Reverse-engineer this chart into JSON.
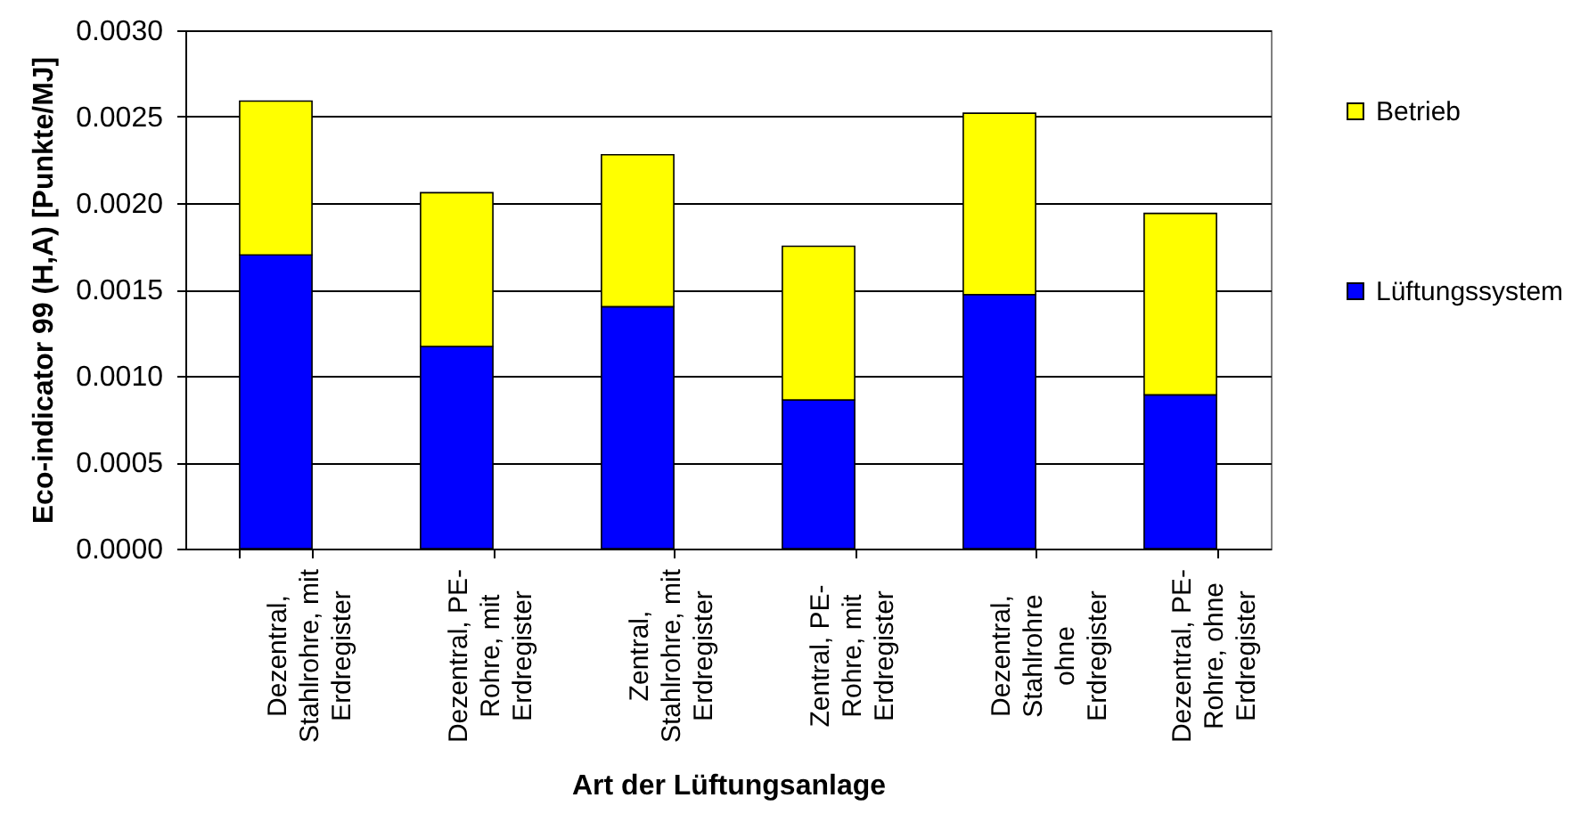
{
  "chart_data": {
    "type": "bar",
    "xlabel": "Art der Lüftungsanlage",
    "ylabel": "Eco-indicator 99 (H,A) [Punkte/MJ]",
    "categories": [
      "Dezentral, Stahlrohre, mit Erdregister",
      "Dezentral, PE-Rohre, mit Erdregister",
      "Zentral, Stahlrohre, mit Erdregister",
      "Zentral, PE-Rohre, mit Erdregister",
      "Dezentral, Stahlrohre ohne Erdregister",
      "Dezentral, PE-Rohre, ohne Erdregister"
    ],
    "series": [
      {
        "name": "Lüftungssystem",
        "color": "#0000ff",
        "values": [
          0.0017,
          0.00117,
          0.0014,
          0.00086,
          0.00147,
          0.00089
        ]
      },
      {
        "name": "Betrieb",
        "color": "#ffff00",
        "values": [
          0.00089,
          0.00089,
          0.00088,
          0.00089,
          0.00105,
          0.00105
        ]
      }
    ],
    "stacked": true,
    "ylim": [
      0,
      0.003
    ],
    "yticks": [
      {
        "value": 0,
        "label": "0.0000"
      },
      0.0005,
      {
        "value": 0.001,
        "label": "0.0010"
      },
      0.0015,
      {
        "value": 0.002,
        "label": "0.0020"
      },
      0.0025,
      {
        "value": 0.003,
        "label": "0.0030"
      }
    ],
    "grid": "y",
    "legend": "right"
  }
}
